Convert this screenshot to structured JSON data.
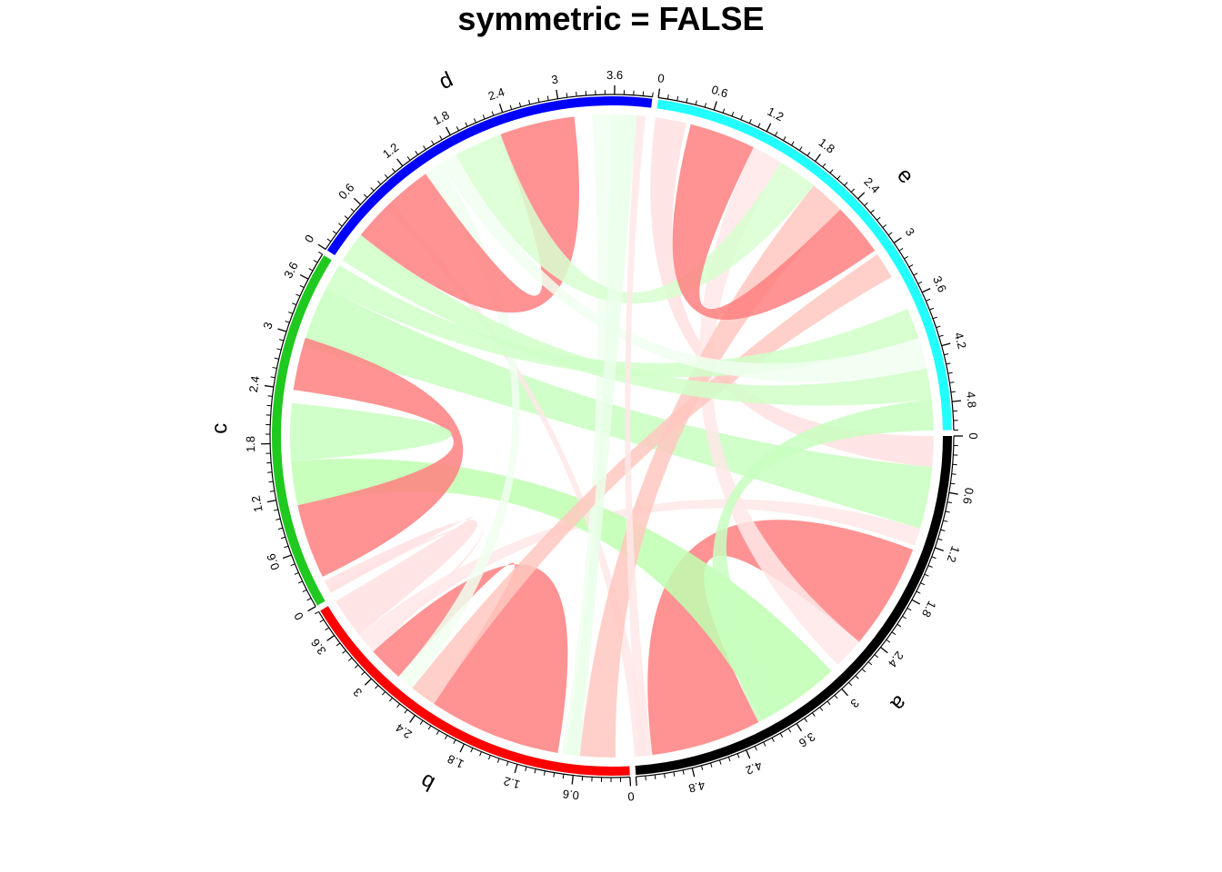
{
  "title": "symmetric = FALSE",
  "chart_data": {
    "type": "chord",
    "title": "symmetric = FALSE",
    "sectors": [
      {
        "name": "a",
        "color": "#000000",
        "max": 5.4,
        "ticks": [
          "0",
          "0.6",
          "1.2",
          "1.8",
          "2.4",
          "3",
          "3.6",
          "4.2",
          "4.8"
        ]
      },
      {
        "name": "b",
        "color": "#FF0000",
        "max": 3.9,
        "ticks": [
          "0",
          "0.6",
          "1.2",
          "1.8",
          "2.4",
          "3",
          "3.6"
        ]
      },
      {
        "name": "c",
        "color": "#1FC91F",
        "max": 3.9,
        "ticks": [
          "0",
          "0.6",
          "1.2",
          "1.8",
          "2.4",
          "3",
          "3.6"
        ]
      },
      {
        "name": "d",
        "color": "#0000FF",
        "max": 4.0,
        "ticks": [
          "0",
          "0.6",
          "1.2",
          "1.8",
          "2.4",
          "3",
          "3.6"
        ]
      },
      {
        "name": "e",
        "color": "#22FFFF",
        "max": 5.1,
        "ticks": [
          "0",
          "0.6",
          "1.2",
          "1.8",
          "2.4",
          "3",
          "3.6",
          "4.2",
          "4.8"
        ]
      }
    ],
    "links": [
      {
        "from": "a",
        "from_range": [
          0.0,
          0.35
        ],
        "to": "e",
        "to_range": [
          0.0,
          0.35
        ],
        "color": "#FFE0E0"
      },
      {
        "from": "a",
        "from_range": [
          0.35,
          1.05
        ],
        "to": "c",
        "to_range": [
          2.9,
          3.6
        ],
        "color": "#C8FFC0"
      },
      {
        "from": "a",
        "from_range": [
          1.05,
          1.25
        ],
        "to": "b",
        "to_range": [
          3.25,
          3.45
        ],
        "color": "#FFE8E8"
      },
      {
        "from": "a",
        "from_range": [
          1.3,
          2.5
        ],
        "to": "a",
        "to_range": [
          3.95,
          5.2
        ],
        "color": "#FF8080"
      },
      {
        "from": "a",
        "from_range": [
          2.5,
          2.85
        ],
        "to": "e",
        "to_range": [
          1.15,
          1.5
        ],
        "color": "#FFE8E8"
      },
      {
        "from": "a",
        "from_range": [
          2.95,
          3.9
        ],
        "to": "c",
        "to_range": [
          1.1,
          1.6
        ],
        "color": "#C0FFB0"
      },
      {
        "from": "a",
        "from_range": [
          5.25,
          5.4
        ],
        "to": "d",
        "to_range": [
          0.75,
          0.85
        ],
        "color": "#FFE8E8"
      },
      {
        "from": "b",
        "from_range": [
          0.15,
          0.55
        ],
        "to": "e",
        "to_range": [
          1.95,
          2.35
        ],
        "color": "#FFC8C0"
      },
      {
        "from": "b",
        "from_range": [
          0.6,
          0.75
        ],
        "to": "d",
        "to_range": [
          3.35,
          3.55
        ],
        "color": "#F0FFF0"
      },
      {
        "from": "b",
        "from_range": [
          0.8,
          2.3
        ],
        "to": "b",
        "to_range": [
          2.8,
          3.2
        ],
        "color": "#FF8080"
      },
      {
        "from": "b",
        "from_range": [
          2.3,
          2.6
        ],
        "to": "e",
        "to_range": [
          3.0,
          3.3
        ],
        "color": "#FFC8C0"
      },
      {
        "from": "b",
        "from_range": [
          2.6,
          2.8
        ],
        "to": "d",
        "to_range": [
          1.35,
          1.55
        ],
        "color": "#F0FFF0"
      },
      {
        "from": "b",
        "from_range": [
          3.2,
          3.25
        ],
        "to": "c",
        "to_range": [
          0.05,
          0.1
        ],
        "color": "#FFE8E8"
      },
      {
        "from": "b",
        "from_range": [
          3.45,
          3.9
        ],
        "to": "c",
        "to_range": [
          0.05,
          0.2
        ],
        "color": "#FFE0E0"
      },
      {
        "from": "c",
        "from_range": [
          0.25,
          1.1
        ],
        "to": "c",
        "to_range": [
          2.4,
          3.0
        ],
        "color": "#FF8080"
      },
      {
        "from": "c",
        "from_range": [
          1.6,
          2.0
        ],
        "to": "c",
        "to_range": [
          2.0,
          2.25
        ],
        "color": "#C8FFC0"
      },
      {
        "from": "c",
        "from_range": [
          3.6,
          3.9
        ],
        "to": "e",
        "to_range": [
          3.7,
          4.05
        ],
        "color": "#D0FFC8"
      },
      {
        "from": "d",
        "from_range": [
          0.0,
          0.35
        ],
        "to": "e",
        "to_range": [
          4.4,
          4.75
        ],
        "color": "#D0FFC8"
      },
      {
        "from": "d",
        "from_range": [
          0.35,
          1.35
        ],
        "to": "d",
        "to_range": [
          2.3,
          3.15
        ],
        "color": "#FF8080"
      },
      {
        "from": "d",
        "from_range": [
          1.55,
          1.75
        ],
        "to": "e",
        "to_range": [
          4.05,
          4.4
        ],
        "color": "#F0FFF0"
      },
      {
        "from": "d",
        "from_range": [
          1.75,
          2.3
        ],
        "to": "e",
        "to_range": [
          1.5,
          1.95
        ],
        "color": "#D8FFD0"
      },
      {
        "from": "d",
        "from_range": [
          3.55,
          3.85
        ],
        "to": "b",
        "to_range": [
          0.55,
          0.7
        ],
        "color": "#EAFFEA"
      },
      {
        "from": "d",
        "from_range": [
          3.85,
          3.95
        ],
        "to": "a",
        "to_range": [
          5.2,
          5.35
        ],
        "color": "#FFE8E8"
      },
      {
        "from": "e",
        "from_range": [
          0.4,
          1.15
        ],
        "to": "e",
        "to_range": [
          2.35,
          2.95
        ],
        "color": "#FF8080"
      },
      {
        "from": "e",
        "from_range": [
          4.75,
          5.1
        ],
        "to": "a",
        "to_range": [
          3.55,
          3.95
        ],
        "color": "#C8FFC0"
      }
    ]
  }
}
